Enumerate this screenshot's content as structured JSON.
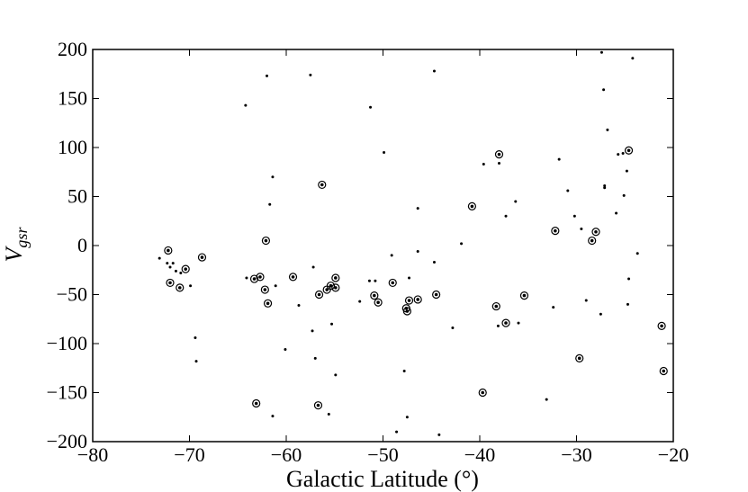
{
  "chart_data": {
    "type": "scatter",
    "xlabel": "Galactic Latitude (°)",
    "ylabel": "V",
    "ylabel_subscript": "gsr",
    "xlim": [
      -80,
      -20
    ],
    "ylim": [
      -200,
      200
    ],
    "xticks": [
      {
        "value": -80,
        "label": "−80"
      },
      {
        "value": -70,
        "label": "−70"
      },
      {
        "value": -60,
        "label": "−60"
      },
      {
        "value": -50,
        "label": "−50"
      },
      {
        "value": -40,
        "label": "−40"
      },
      {
        "value": -30,
        "label": "−30"
      },
      {
        "value": -20,
        "label": "−20"
      }
    ],
    "yticks": [
      {
        "value": -200,
        "label": "−200"
      },
      {
        "value": -150,
        "label": "−150"
      },
      {
        "value": -100,
        "label": "−100"
      },
      {
        "value": -50,
        "label": "−50"
      },
      0,
      50,
      100,
      150,
      200
    ],
    "series": [
      {
        "marker": "dot",
        "color": "#000000",
        "x": [
          -73.1,
          -72.3,
          -71.7,
          -72.0,
          -71.4,
          -70.9,
          -69.9,
          -69.4,
          -69.3,
          -64.2,
          -64.1,
          -62.0,
          -61.4,
          -61.7,
          -61.1,
          -60.1,
          -61.4,
          -57.5,
          -57.2,
          -58.7,
          -57.3,
          -57.0,
          -55.6,
          -55.3,
          -54.9,
          -52.4,
          -51.4,
          -50.8,
          -51.3,
          -49.9,
          -49.1,
          -48.6,
          -47.8,
          -47.3,
          -47.5,
          -46.4,
          -46.4,
          -44.7,
          -44.7,
          -44.2,
          -42.8,
          -41.9,
          -39.6,
          -38.0,
          -38.1,
          -37.3,
          -36.3,
          -36.0,
          -33.1,
          -32.4,
          -31.8,
          -30.9,
          -30.2,
          -29.5,
          -29.0,
          -27.4,
          -27.2,
          -27.1,
          -27.1,
          -26.8,
          -27.5,
          -25.9,
          -25.7,
          -25.2,
          -25.1,
          -24.8,
          -24.6,
          -24.2,
          -23.7,
          -24.7
        ],
        "values": [
          -13,
          -18,
          -18,
          -22,
          -26,
          -28,
          -41,
          -94,
          -118,
          143,
          -33,
          173,
          70,
          42,
          -41,
          -106,
          -174,
          174,
          -22,
          -61,
          -87,
          -115,
          -172,
          -80,
          -132,
          -57,
          -36,
          -36,
          141,
          95,
          -10,
          -190,
          -128,
          -33,
          -175,
          -6,
          38,
          178,
          -17,
          -193,
          -84,
          2,
          83,
          84,
          -82,
          30,
          45,
          -79,
          -157,
          -63,
          88,
          56,
          30,
          17,
          -56,
          197,
          159,
          61,
          59,
          118,
          -70,
          33,
          93,
          94,
          51,
          76,
          -34,
          191,
          -8,
          -60
        ]
      },
      {
        "marker": "ring",
        "color": "#000000",
        "x": [
          -72.2,
          -72.0,
          -70.4,
          -71.0,
          -68.7,
          -62.1,
          -63.1,
          -63.3,
          -62.7,
          -62.2,
          -61.9,
          -59.3,
          -56.3,
          -56.6,
          -55.8,
          -55.4,
          -54.9,
          -54.9,
          -56.7,
          -50.9,
          -50.5,
          -49.0,
          -47.5,
          -47.6,
          -47.3,
          -46.4,
          -44.5,
          -40.8,
          -39.7,
          -38.0,
          -38.3,
          -37.3,
          -35.4,
          -32.2,
          -29.7,
          -28.4,
          -28.0,
          -24.6,
          -21.2,
          -21.0
        ],
        "values": [
          -5,
          -38,
          -24,
          -43,
          -12,
          5,
          -161,
          -34,
          -32,
          -45,
          -59,
          -32,
          62,
          -50,
          -45,
          -41,
          -33,
          -43,
          -163,
          -51,
          -58,
          -38,
          -67,
          -64,
          -56,
          -55,
          -50,
          40,
          -150,
          93,
          -62,
          -79,
          -51,
          15,
          -115,
          5,
          14,
          97,
          -82,
          -128
        ]
      }
    ]
  }
}
